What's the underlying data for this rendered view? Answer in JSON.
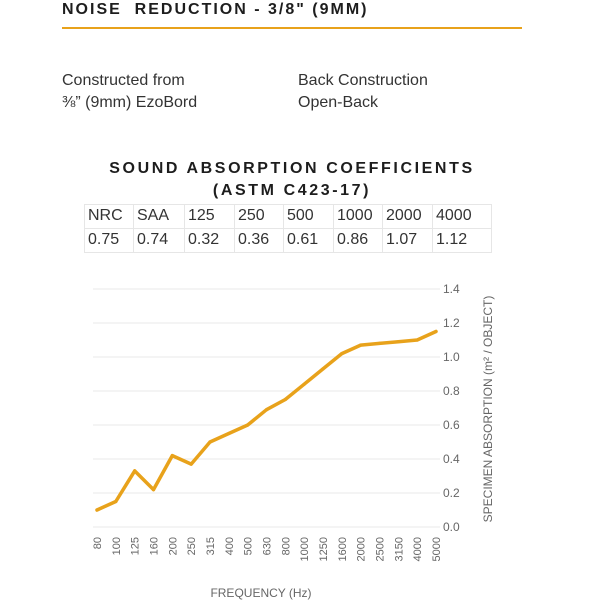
{
  "header": {
    "title": "NOISE  REDUCTION - 3/8\" (9MM)",
    "rule_color": "#e8a21b"
  },
  "specs": {
    "construction_heading": "Constructed from",
    "construction_value": "⅜” (9mm) EzoBord",
    "back_heading": "Back Construction",
    "back_value": "Open-Back"
  },
  "coefficients": {
    "title_line1": "SOUND ABSORPTION COEFFICIENTS",
    "title_line2": "(ASTM C423-17)",
    "headers": [
      "NRC",
      "SAA",
      "125",
      "250",
      "500",
      "1000",
      "2000",
      "4000"
    ],
    "values": [
      "0.75",
      "0.74",
      "0.32",
      "0.36",
      "0.61",
      "0.86",
      "1.07",
      "1.12"
    ]
  },
  "chart_data": {
    "type": "line",
    "xlabel": "FREQUENCY (Hz)",
    "ylabel": "SPECIMEN ABSORPTION (m² / OBJECT)",
    "x": [
      "80",
      "100",
      "125",
      "160",
      "200",
      "250",
      "315",
      "400",
      "500",
      "630",
      "800",
      "1000",
      "1250",
      "1600",
      "2000",
      "2500",
      "3150",
      "4000",
      "5000"
    ],
    "series": [
      {
        "values": [
          0.1,
          0.15,
          0.33,
          0.22,
          0.42,
          0.37,
          0.5,
          0.55,
          0.6,
          0.69,
          0.75,
          0.84,
          0.93,
          1.02,
          1.07,
          1.08,
          1.09,
          1.1,
          1.15
        ],
        "color": "#e8a21b"
      }
    ],
    "yticks": [
      "0.0",
      "0.2",
      "0.4",
      "0.6",
      "0.8",
      "1.0",
      "1.2",
      "1.4"
    ],
    "ylim": [
      0,
      1.4
    ],
    "grid": true,
    "yaxis_position": "right",
    "line_color": "#e8a21b",
    "grid_color": "#eaeaea",
    "text_color": "#666666"
  }
}
